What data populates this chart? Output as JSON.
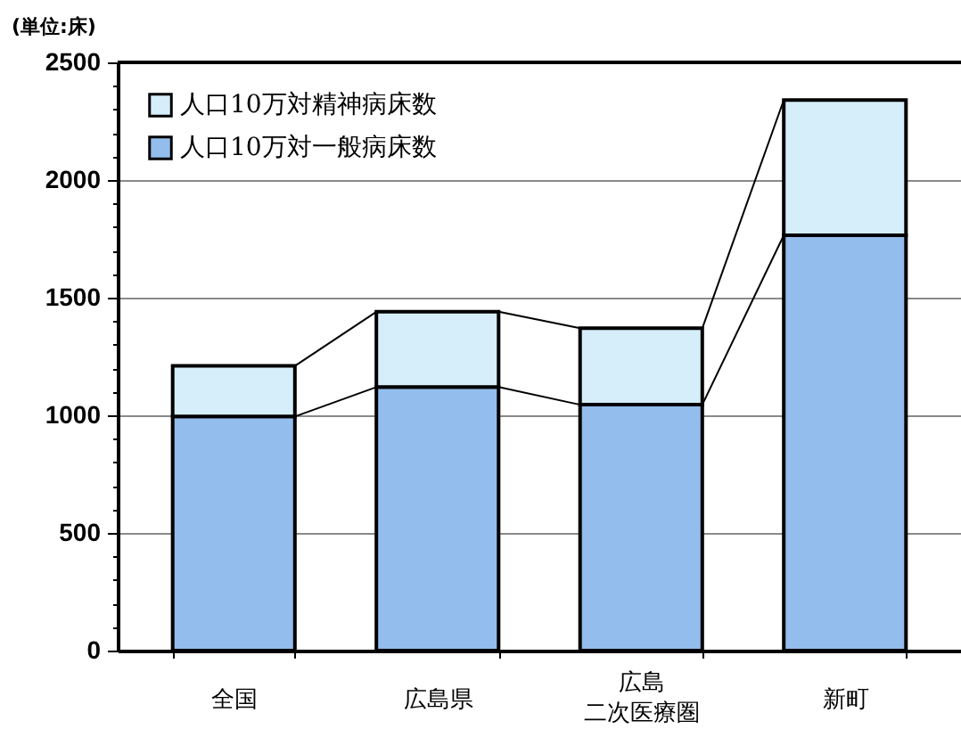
{
  "chart_data": {
    "type": "bar",
    "stacked": true,
    "ylabel": "(単位:床)",
    "categories": [
      "全国",
      "広島県",
      "広島二次医療圏",
      "新町"
    ],
    "series": [
      {
        "name": "人口10万対一般病床数",
        "color": "#92bdec",
        "values": [
          995,
          1120,
          1045,
          1765
        ]
      },
      {
        "name": "人口10万対精神病床数",
        "color": "#d5eefa",
        "values": [
          215,
          320,
          325,
          575
        ]
      }
    ],
    "ylim": [
      0,
      2500
    ],
    "yticks": [
      0,
      {
        "value": 100,
        "label": null
      },
      {
        "value": 200,
        "label": null
      },
      {
        "value": 300,
        "label": null
      },
      {
        "value": 400,
        "label": null
      },
      500,
      {
        "value": 600,
        "label": null
      },
      {
        "value": 700,
        "label": null
      },
      {
        "value": 800,
        "label": null
      },
      {
        "value": 900,
        "label": null
      },
      1000,
      {
        "value": 1100,
        "label": null
      },
      {
        "value": 1200,
        "label": null
      },
      {
        "value": 1300,
        "label": null
      },
      {
        "value": 1400,
        "label": null
      },
      1500,
      {
        "value": 1600,
        "label": null
      },
      {
        "value": 1700,
        "label": null
      },
      {
        "value": 1800,
        "label": null
      },
      {
        "value": 1900,
        "label": null
      },
      2000,
      {
        "value": 2100,
        "label": null
      },
      {
        "value": 2200,
        "label": null
      },
      {
        "value": 2300,
        "label": null
      },
      {
        "value": 2400,
        "label": null
      },
      2500
    ],
    "grid": "y",
    "legend": "top left"
  }
}
